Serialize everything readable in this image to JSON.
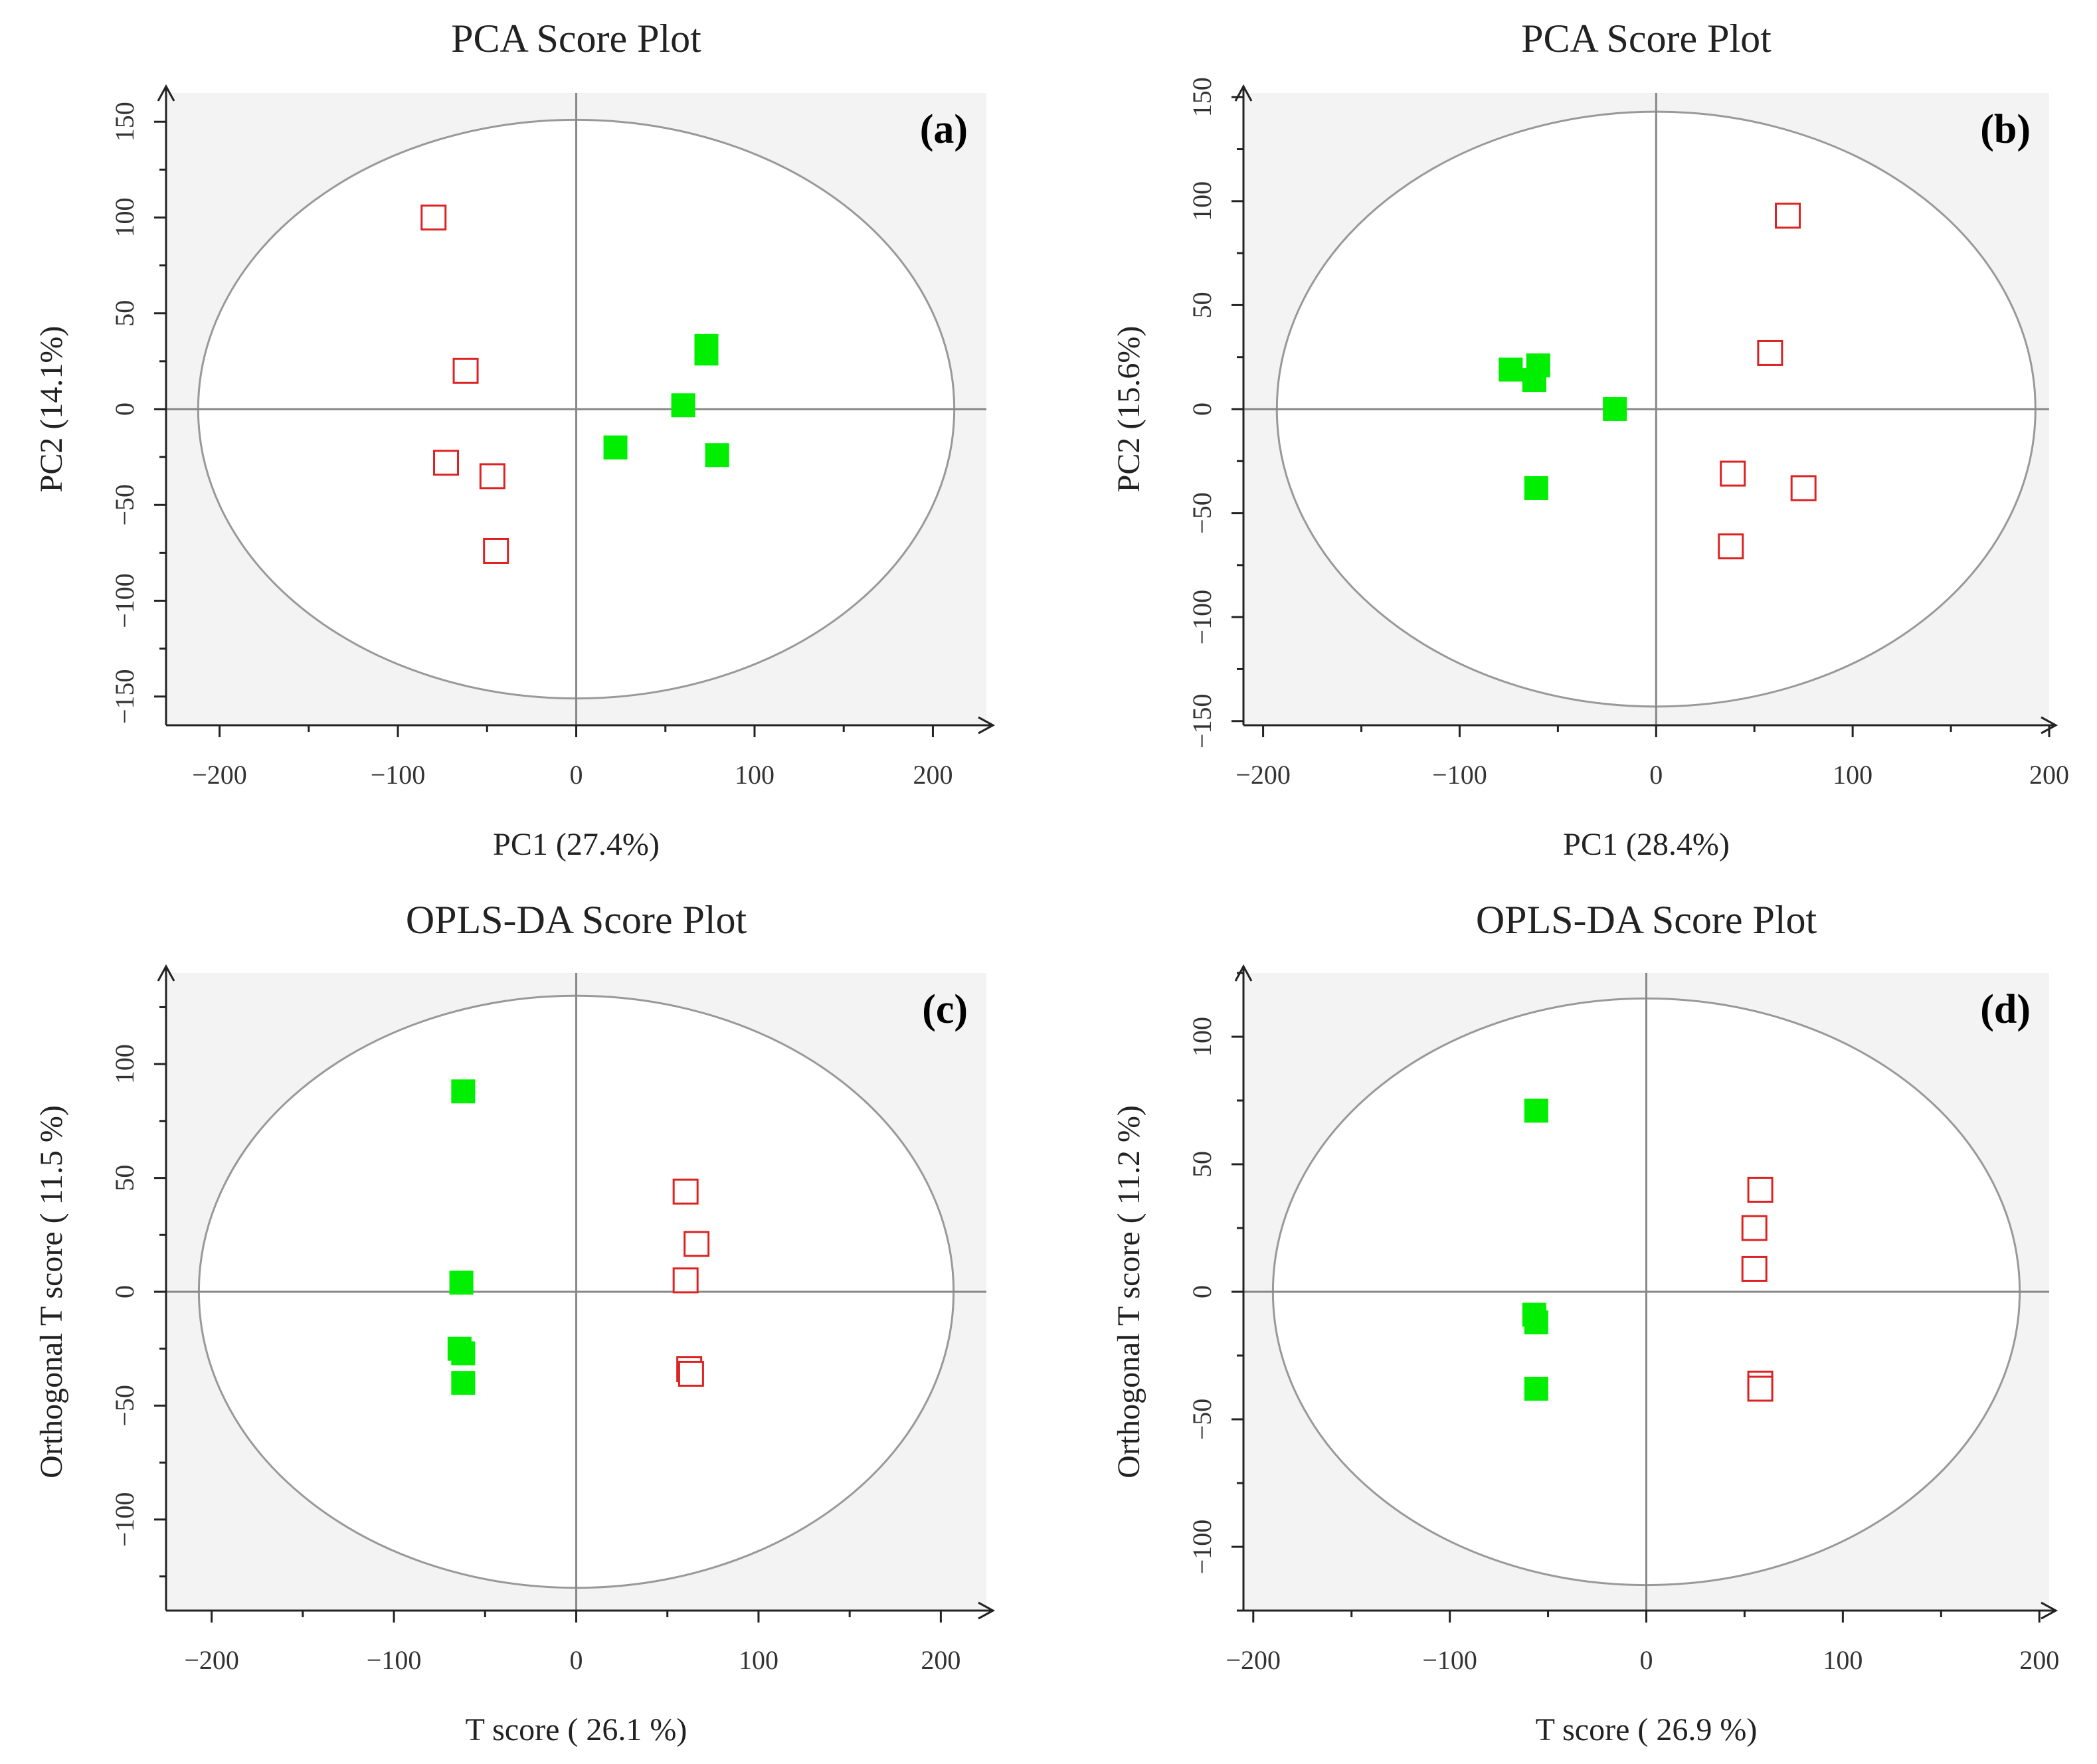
{
  "figure": {
    "colors": {
      "background_panel": "#f3f3f3",
      "axis": "#222222",
      "center_lines": "#888888",
      "ellipse": "#999999",
      "group_filled": "#00ee00",
      "group_open": "#dd2222"
    }
  },
  "chart_data": [
    {
      "id": "a",
      "type": "scatter",
      "title": "PCA Score Plot",
      "panel_label": "(a)",
      "xlabel": "PC1 (27.4%)",
      "ylabel": "PC2 (14.1%)",
      "xlim": [
        -230,
        230
      ],
      "ylim": [
        -165,
        165
      ],
      "xticks": [
        -200,
        -100,
        0,
        100,
        200
      ],
      "xtick_labels": [
        "−200",
        "−100",
        "0",
        "100",
        "200"
      ],
      "yticks": [
        -150,
        -100,
        -50,
        0,
        50,
        100,
        150
      ],
      "ytick_labels": [
        "−150",
        "−100",
        "−50",
        "0",
        "50",
        "100",
        "150"
      ],
      "ellipse": {
        "rx": 212,
        "ry": 151
      },
      "series": [
        {
          "name": "group-open",
          "marker": "open-square",
          "color": "#dd2222",
          "points": [
            [
              -80,
              100
            ],
            [
              -62,
              20
            ],
            [
              -73,
              -28
            ],
            [
              -47,
              -35
            ],
            [
              -45,
              -74
            ]
          ]
        },
        {
          "name": "group-filled",
          "marker": "filled-square",
          "color": "#00ee00",
          "points": [
            [
              73,
              33
            ],
            [
              73,
              29
            ],
            [
              60,
              2
            ],
            [
              22,
              -20
            ],
            [
              79,
              -24
            ]
          ]
        }
      ]
    },
    {
      "id": "b",
      "type": "scatter",
      "title": "PCA Score Plot",
      "panel_label": "(b)",
      "xlabel": "PC1 (28.4%)",
      "ylabel": "PC2 (15.6%)",
      "xlim": [
        -210,
        200
      ],
      "ylim": [
        -152,
        152
      ],
      "xticks": [
        -200,
        -100,
        0,
        100,
        200
      ],
      "xtick_labels": [
        "−200",
        "−100",
        "0",
        "100",
        "200"
      ],
      "yticks": [
        -150,
        -100,
        -50,
        0,
        50,
        100,
        150
      ],
      "ytick_labels": [
        "−150",
        "−100",
        "−50",
        "0",
        "50",
        "100",
        "150"
      ],
      "ellipse": {
        "rx": 193,
        "ry": 143
      },
      "series": [
        {
          "name": "group-open",
          "marker": "open-square",
          "color": "#dd2222",
          "points": [
            [
              67,
              93
            ],
            [
              58,
              27
            ],
            [
              39,
              -31
            ],
            [
              75,
              -38
            ],
            [
              38,
              -66
            ]
          ]
        },
        {
          "name": "group-filled",
          "marker": "filled-square",
          "color": "#00ee00",
          "points": [
            [
              -74,
              19
            ],
            [
              -60,
              21
            ],
            [
              -62,
              14
            ],
            [
              -21,
              0
            ],
            [
              -61,
              -38
            ]
          ]
        }
      ]
    },
    {
      "id": "c",
      "type": "scatter",
      "title": "OPLS-DA Score Plot",
      "panel_label": "(c)",
      "xlabel": "T score ( 26.1 %)",
      "ylabel": "Orthogonal T score ( 11.5 %)",
      "xlim": [
        -225,
        225
      ],
      "ylim": [
        -140,
        140
      ],
      "xticks": [
        -200,
        -100,
        0,
        100,
        200
      ],
      "xtick_labels": [
        "−200",
        "−100",
        "0",
        "100",
        "200"
      ],
      "yticks": [
        -100,
        -50,
        0,
        50,
        100
      ],
      "ytick_labels": [
        "−100",
        "−50",
        "0",
        "50",
        "100"
      ],
      "ellipse": {
        "rx": 207,
        "ry": 130
      },
      "series": [
        {
          "name": "group-open",
          "marker": "open-square",
          "color": "#dd2222",
          "points": [
            [
              60,
              44
            ],
            [
              66,
              21
            ],
            [
              60,
              5
            ],
            [
              62,
              -34
            ],
            [
              63,
              -36
            ]
          ]
        },
        {
          "name": "group-filled",
          "marker": "filled-square",
          "color": "#00ee00",
          "points": [
            [
              -62,
              88
            ],
            [
              -63,
              4
            ],
            [
              -64,
              -25
            ],
            [
              -62,
              -27
            ],
            [
              -62,
              -40
            ]
          ]
        }
      ]
    },
    {
      "id": "d",
      "type": "scatter",
      "title": "OPLS-DA Score Plot",
      "panel_label": "(d)",
      "xlabel": "T score ( 26.9 %)",
      "ylabel": "Orthogonal T score ( 11.2 %)",
      "xlim": [
        -205,
        205
      ],
      "ylim": [
        -125,
        125
      ],
      "xticks": [
        -200,
        -100,
        0,
        100,
        200
      ],
      "xtick_labels": [
        "−200",
        "−100",
        "0",
        "100",
        "200"
      ],
      "yticks": [
        -100,
        -50,
        0,
        50,
        100
      ],
      "ytick_labels": [
        "−100",
        "−50",
        "0",
        "50",
        "100"
      ],
      "ellipse": {
        "rx": 190,
        "ry": 115
      },
      "series": [
        {
          "name": "group-open",
          "marker": "open-square",
          "color": "#dd2222",
          "points": [
            [
              58,
              40
            ],
            [
              55,
              25
            ],
            [
              55,
              9
            ],
            [
              58,
              -36
            ],
            [
              58,
              -38
            ]
          ]
        },
        {
          "name": "group-filled",
          "marker": "filled-square",
          "color": "#00ee00",
          "points": [
            [
              -56,
              71
            ],
            [
              -57,
              -9
            ],
            [
              -56,
              -12
            ],
            [
              -56,
              -38
            ]
          ]
        }
      ]
    }
  ]
}
